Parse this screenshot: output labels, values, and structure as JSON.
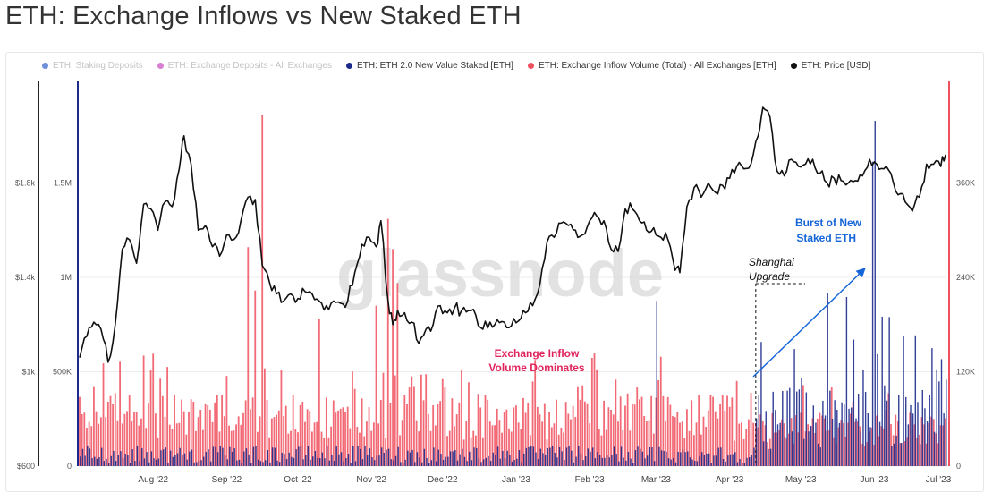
{
  "title": "ETH: Exchange Inflows vs New Staked ETH",
  "legend": [
    {
      "label": "ETH: Staking Deposits",
      "color": "#6f8fd8",
      "active": false
    },
    {
      "label": "ETH: Exchange Deposits - All Exchanges",
      "color": "#d77fd3",
      "active": false
    },
    {
      "label": "ETH: ETH 2.0 New Value Staked [ETH]",
      "color": "#1b2a8c",
      "active": true
    },
    {
      "label": "ETH: Exchange Inflow Volume (Total) - All Exchanges [ETH]",
      "color": "#f0505e",
      "active": true
    },
    {
      "label": "ETH: Price [USD]",
      "color": "#111111",
      "active": true
    }
  ],
  "watermark": "glassnode",
  "chart_data": {
    "type": "bar",
    "x_ticks": [
      "Aug '22",
      "Sep '22",
      "Oct '22",
      "Nov '22",
      "Dec '22",
      "Jan '23",
      "Feb '23",
      "Mar '23",
      "Apr '23",
      "May '23",
      "Jun '23",
      "Jul '23"
    ],
    "x_range": [
      "2022-07-01",
      "2023-07-01"
    ],
    "price_axis": {
      "ticks": [
        "$600",
        "$1k",
        "$1.4k",
        "$1.8k"
      ],
      "range": [
        600,
        2200
      ]
    },
    "volume_axis": {
      "ticks": [
        "0",
        "500K",
        "1M",
        "1.5M"
      ],
      "range": [
        0,
        2000000
      ]
    },
    "staked_axis": {
      "ticks": [
        "0",
        "120K",
        "240K",
        "360K"
      ],
      "range": [
        0,
        480000
      ]
    },
    "series": [
      {
        "name": "ETH: Price [USD]",
        "kind": "line",
        "axis": "price",
        "color": "#111111",
        "points": [
          [
            "2022-07-01",
            1060
          ],
          [
            "2022-07-04",
            1150
          ],
          [
            "2022-07-07",
            1210
          ],
          [
            "2022-07-10",
            1180
          ],
          [
            "2022-07-13",
            1040
          ],
          [
            "2022-07-16",
            1200
          ],
          [
            "2022-07-19",
            1520
          ],
          [
            "2022-07-22",
            1560
          ],
          [
            "2022-07-25",
            1460
          ],
          [
            "2022-07-28",
            1710
          ],
          [
            "2022-07-31",
            1690
          ],
          [
            "2022-08-03",
            1600
          ],
          [
            "2022-08-06",
            1720
          ],
          [
            "2022-08-09",
            1700
          ],
          [
            "2022-08-12",
            1860
          ],
          [
            "2022-08-14",
            2000
          ],
          [
            "2022-08-17",
            1880
          ],
          [
            "2022-08-20",
            1600
          ],
          [
            "2022-08-23",
            1620
          ],
          [
            "2022-08-26",
            1530
          ],
          [
            "2022-08-29",
            1490
          ],
          [
            "2022-09-01",
            1580
          ],
          [
            "2022-09-04",
            1560
          ],
          [
            "2022-09-07",
            1640
          ],
          [
            "2022-09-10",
            1740
          ],
          [
            "2022-09-13",
            1730
          ],
          [
            "2022-09-16",
            1450
          ],
          [
            "2022-09-19",
            1380
          ],
          [
            "2022-09-22",
            1330
          ],
          [
            "2022-09-25",
            1300
          ],
          [
            "2022-09-28",
            1330
          ],
          [
            "2022-10-01",
            1310
          ],
          [
            "2022-10-04",
            1340
          ],
          [
            "2022-10-07",
            1330
          ],
          [
            "2022-10-10",
            1300
          ],
          [
            "2022-10-13",
            1280
          ],
          [
            "2022-10-16",
            1300
          ],
          [
            "2022-10-19",
            1290
          ],
          [
            "2022-10-22",
            1300
          ],
          [
            "2022-10-25",
            1420
          ],
          [
            "2022-10-28",
            1540
          ],
          [
            "2022-10-31",
            1570
          ],
          [
            "2022-11-03",
            1530
          ],
          [
            "2022-11-05",
            1640
          ],
          [
            "2022-11-08",
            1300
          ],
          [
            "2022-11-10",
            1200
          ],
          [
            "2022-11-12",
            1260
          ],
          [
            "2022-11-15",
            1250
          ],
          [
            "2022-11-18",
            1210
          ],
          [
            "2022-11-21",
            1120
          ],
          [
            "2022-11-24",
            1180
          ],
          [
            "2022-11-27",
            1200
          ],
          [
            "2022-11-30",
            1280
          ],
          [
            "2022-12-03",
            1250
          ],
          [
            "2022-12-06",
            1270
          ],
          [
            "2022-12-09",
            1260
          ],
          [
            "2022-12-12",
            1260
          ],
          [
            "2022-12-15",
            1240
          ],
          [
            "2022-12-18",
            1180
          ],
          [
            "2022-12-21",
            1210
          ],
          [
            "2022-12-24",
            1220
          ],
          [
            "2022-12-27",
            1210
          ],
          [
            "2022-12-30",
            1195
          ],
          [
            "2023-01-02",
            1215
          ],
          [
            "2023-01-05",
            1250
          ],
          [
            "2023-01-08",
            1280
          ],
          [
            "2023-01-11",
            1370
          ],
          [
            "2023-01-14",
            1550
          ],
          [
            "2023-01-17",
            1570
          ],
          [
            "2023-01-20",
            1630
          ],
          [
            "2023-01-23",
            1620
          ],
          [
            "2023-01-26",
            1600
          ],
          [
            "2023-01-29",
            1580
          ],
          [
            "2023-02-01",
            1640
          ],
          [
            "2023-02-04",
            1660
          ],
          [
            "2023-02-07",
            1640
          ],
          [
            "2023-02-10",
            1520
          ],
          [
            "2023-02-13",
            1510
          ],
          [
            "2023-02-16",
            1690
          ],
          [
            "2023-02-19",
            1690
          ],
          [
            "2023-02-22",
            1640
          ],
          [
            "2023-02-25",
            1600
          ],
          [
            "2023-02-28",
            1610
          ],
          [
            "2023-03-03",
            1570
          ],
          [
            "2023-03-06",
            1560
          ],
          [
            "2023-03-09",
            1430
          ],
          [
            "2023-03-11",
            1420
          ],
          [
            "2023-03-14",
            1700
          ],
          [
            "2023-03-17",
            1780
          ],
          [
            "2023-03-20",
            1740
          ],
          [
            "2023-03-23",
            1800
          ],
          [
            "2023-03-26",
            1760
          ],
          [
            "2023-03-29",
            1790
          ],
          [
            "2023-04-01",
            1820
          ],
          [
            "2023-04-04",
            1870
          ],
          [
            "2023-04-07",
            1860
          ],
          [
            "2023-04-10",
            1880
          ],
          [
            "2023-04-13",
            2000
          ],
          [
            "2023-04-15",
            2120
          ],
          [
            "2023-04-18",
            2080
          ],
          [
            "2023-04-21",
            1850
          ],
          [
            "2023-04-24",
            1830
          ],
          [
            "2023-04-27",
            1900
          ],
          [
            "2023-04-30",
            1870
          ],
          [
            "2023-05-03",
            1880
          ],
          [
            "2023-05-06",
            1900
          ],
          [
            "2023-05-09",
            1840
          ],
          [
            "2023-05-12",
            1800
          ],
          [
            "2023-05-15",
            1820
          ],
          [
            "2023-05-18",
            1810
          ],
          [
            "2023-05-21",
            1800
          ],
          [
            "2023-05-24",
            1810
          ],
          [
            "2023-05-27",
            1830
          ],
          [
            "2023-05-30",
            1900
          ],
          [
            "2023-06-02",
            1880
          ],
          [
            "2023-06-05",
            1860
          ],
          [
            "2023-06-08",
            1840
          ],
          [
            "2023-06-11",
            1750
          ],
          [
            "2023-06-14",
            1720
          ],
          [
            "2023-06-17",
            1680
          ],
          [
            "2023-06-20",
            1740
          ],
          [
            "2023-06-23",
            1880
          ],
          [
            "2023-06-26",
            1880
          ],
          [
            "2023-06-29",
            1870
          ],
          [
            "2023-07-01",
            1920
          ]
        ]
      },
      {
        "name": "ETH: Exchange Inflow Volume (Total) - All Exchanges [ETH]",
        "kind": "bars",
        "axis": "volume",
        "color": "#f0505e",
        "peaks": [
          [
            "2022-09-16",
            1860000
          ],
          [
            "2022-11-10",
            1150000
          ],
          [
            "2022-09-10",
            1160000
          ],
          [
            "2022-09-13",
            930000
          ],
          [
            "2022-11-08",
            1310000
          ],
          [
            "2022-11-12",
            970000
          ],
          [
            "2022-10-10",
            780000
          ],
          [
            "2022-11-03",
            850000
          ],
          [
            "2022-03-14",
            0
          ]
        ]
      },
      {
        "name": "ETH: ETH 2.0 New Value Staked [ETH]",
        "kind": "bars",
        "axis": "staked",
        "color": "#1b2a8c",
        "peaks": [
          [
            "2023-06-01",
            439000
          ],
          [
            "2023-05-31",
            387000
          ],
          [
            "2023-03-01",
            210000
          ],
          [
            "2023-05-12",
            220000
          ],
          [
            "2023-05-20",
            215000
          ],
          [
            "2023-06-04",
            190000
          ],
          [
            "2023-06-25",
            150000
          ],
          [
            "2023-07-01",
            110000
          ]
        ]
      }
    ],
    "annotations": [
      {
        "text": [
          "Exchange Inflow",
          "Volume Dominates"
        ],
        "color": "#e0245e"
      },
      {
        "text": [
          "Shanghai",
          "Upgrade"
        ],
        "color": "#111111",
        "date": "2023-04-12"
      },
      {
        "text": [
          "Burst of New",
          "Staked ETH"
        ],
        "color": "#1565d8"
      }
    ]
  }
}
